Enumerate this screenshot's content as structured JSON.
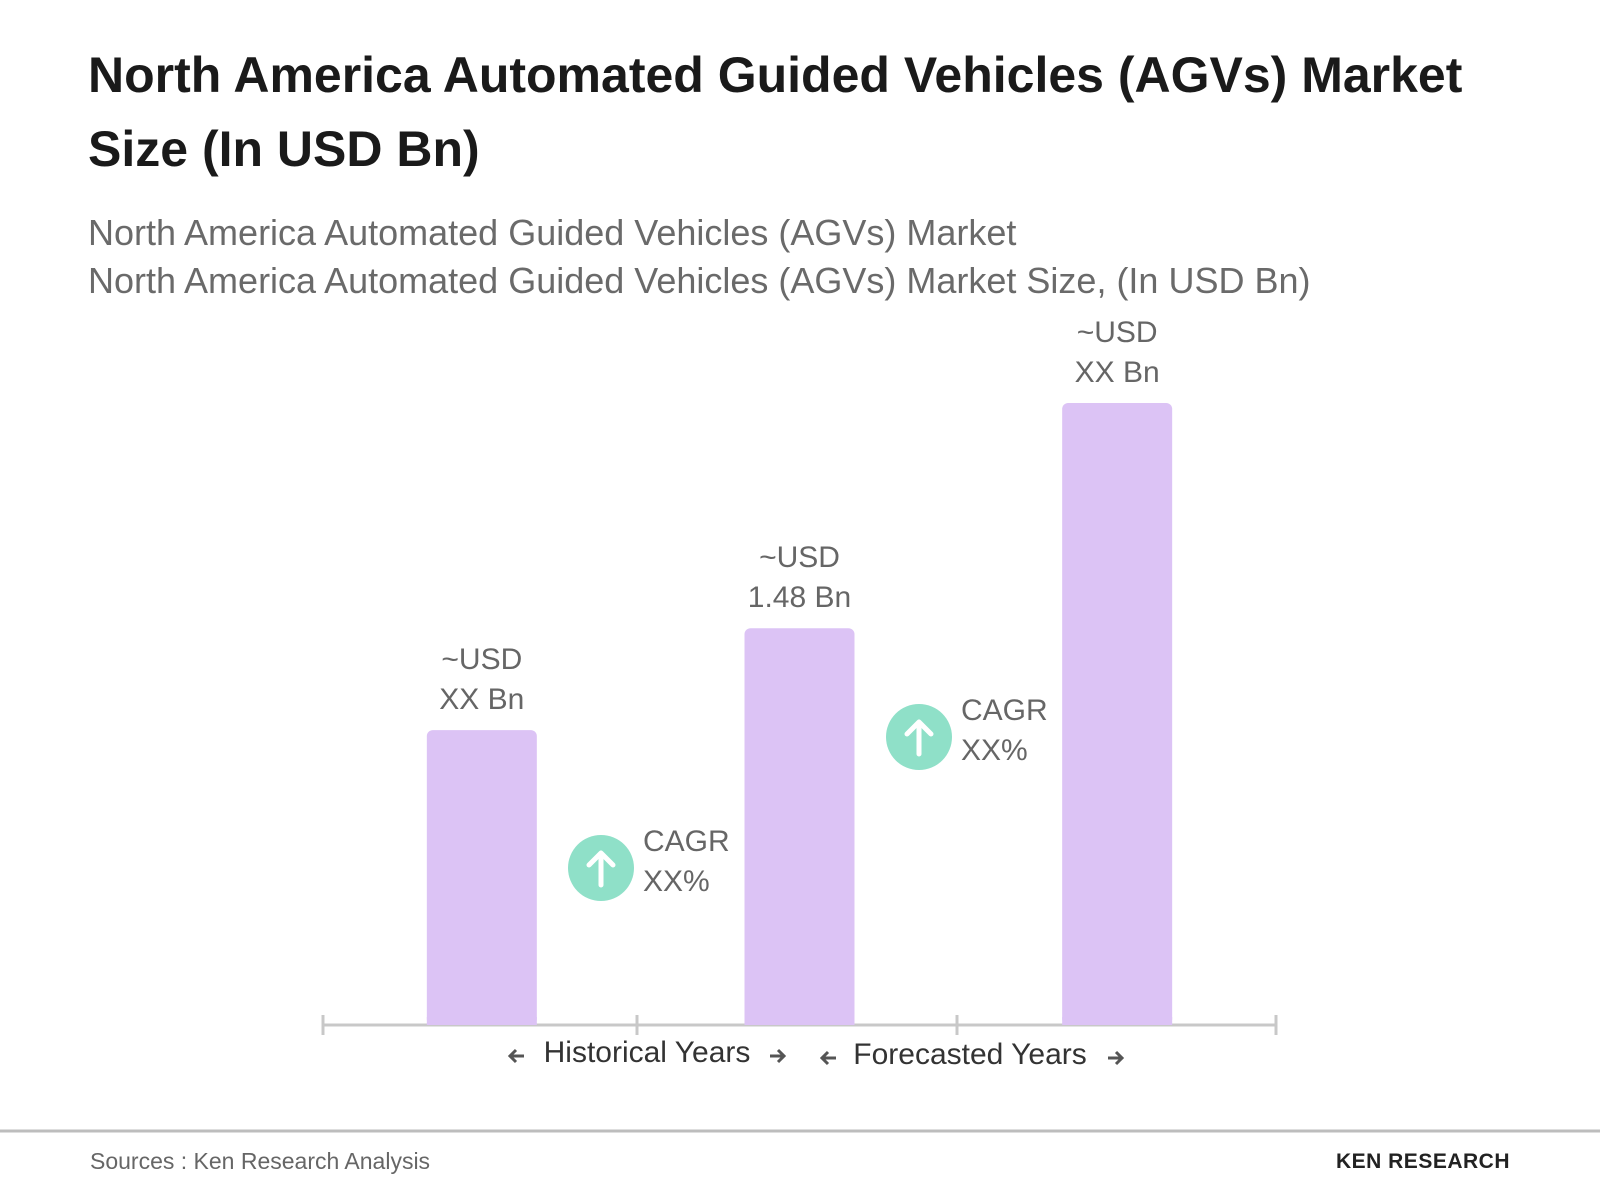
{
  "chart_data": {
    "type": "bar",
    "title": "North America Automated Guided Vehicles (AGVs) Market Size (In USD Bn)",
    "subtitle": [
      "North America Automated Guided Vehicles (AGVs) Market",
      "North America Automated Guided Vehicles (AGVs) Market Size, (In USD Bn)"
    ],
    "categories": [
      null,
      null,
      null
    ],
    "values": [
      1.1,
      1.48,
      2.32
    ],
    "value_labels": [
      "~USD\nXX Bn",
      "~USD\n1.48 Bn",
      "~USD\nXX Bn"
    ],
    "color": "#dcc3f5",
    "annotations": [
      "CAGR\nXX%",
      "CAGR\nXX%"
    ],
    "annotation_color": "#8fe0c8",
    "x_groups": [
      "Historical Years",
      "Forecasted Years"
    ],
    "source": "Sources : Ken Research Analysis",
    "logo": "KEN RESEARCH"
  }
}
